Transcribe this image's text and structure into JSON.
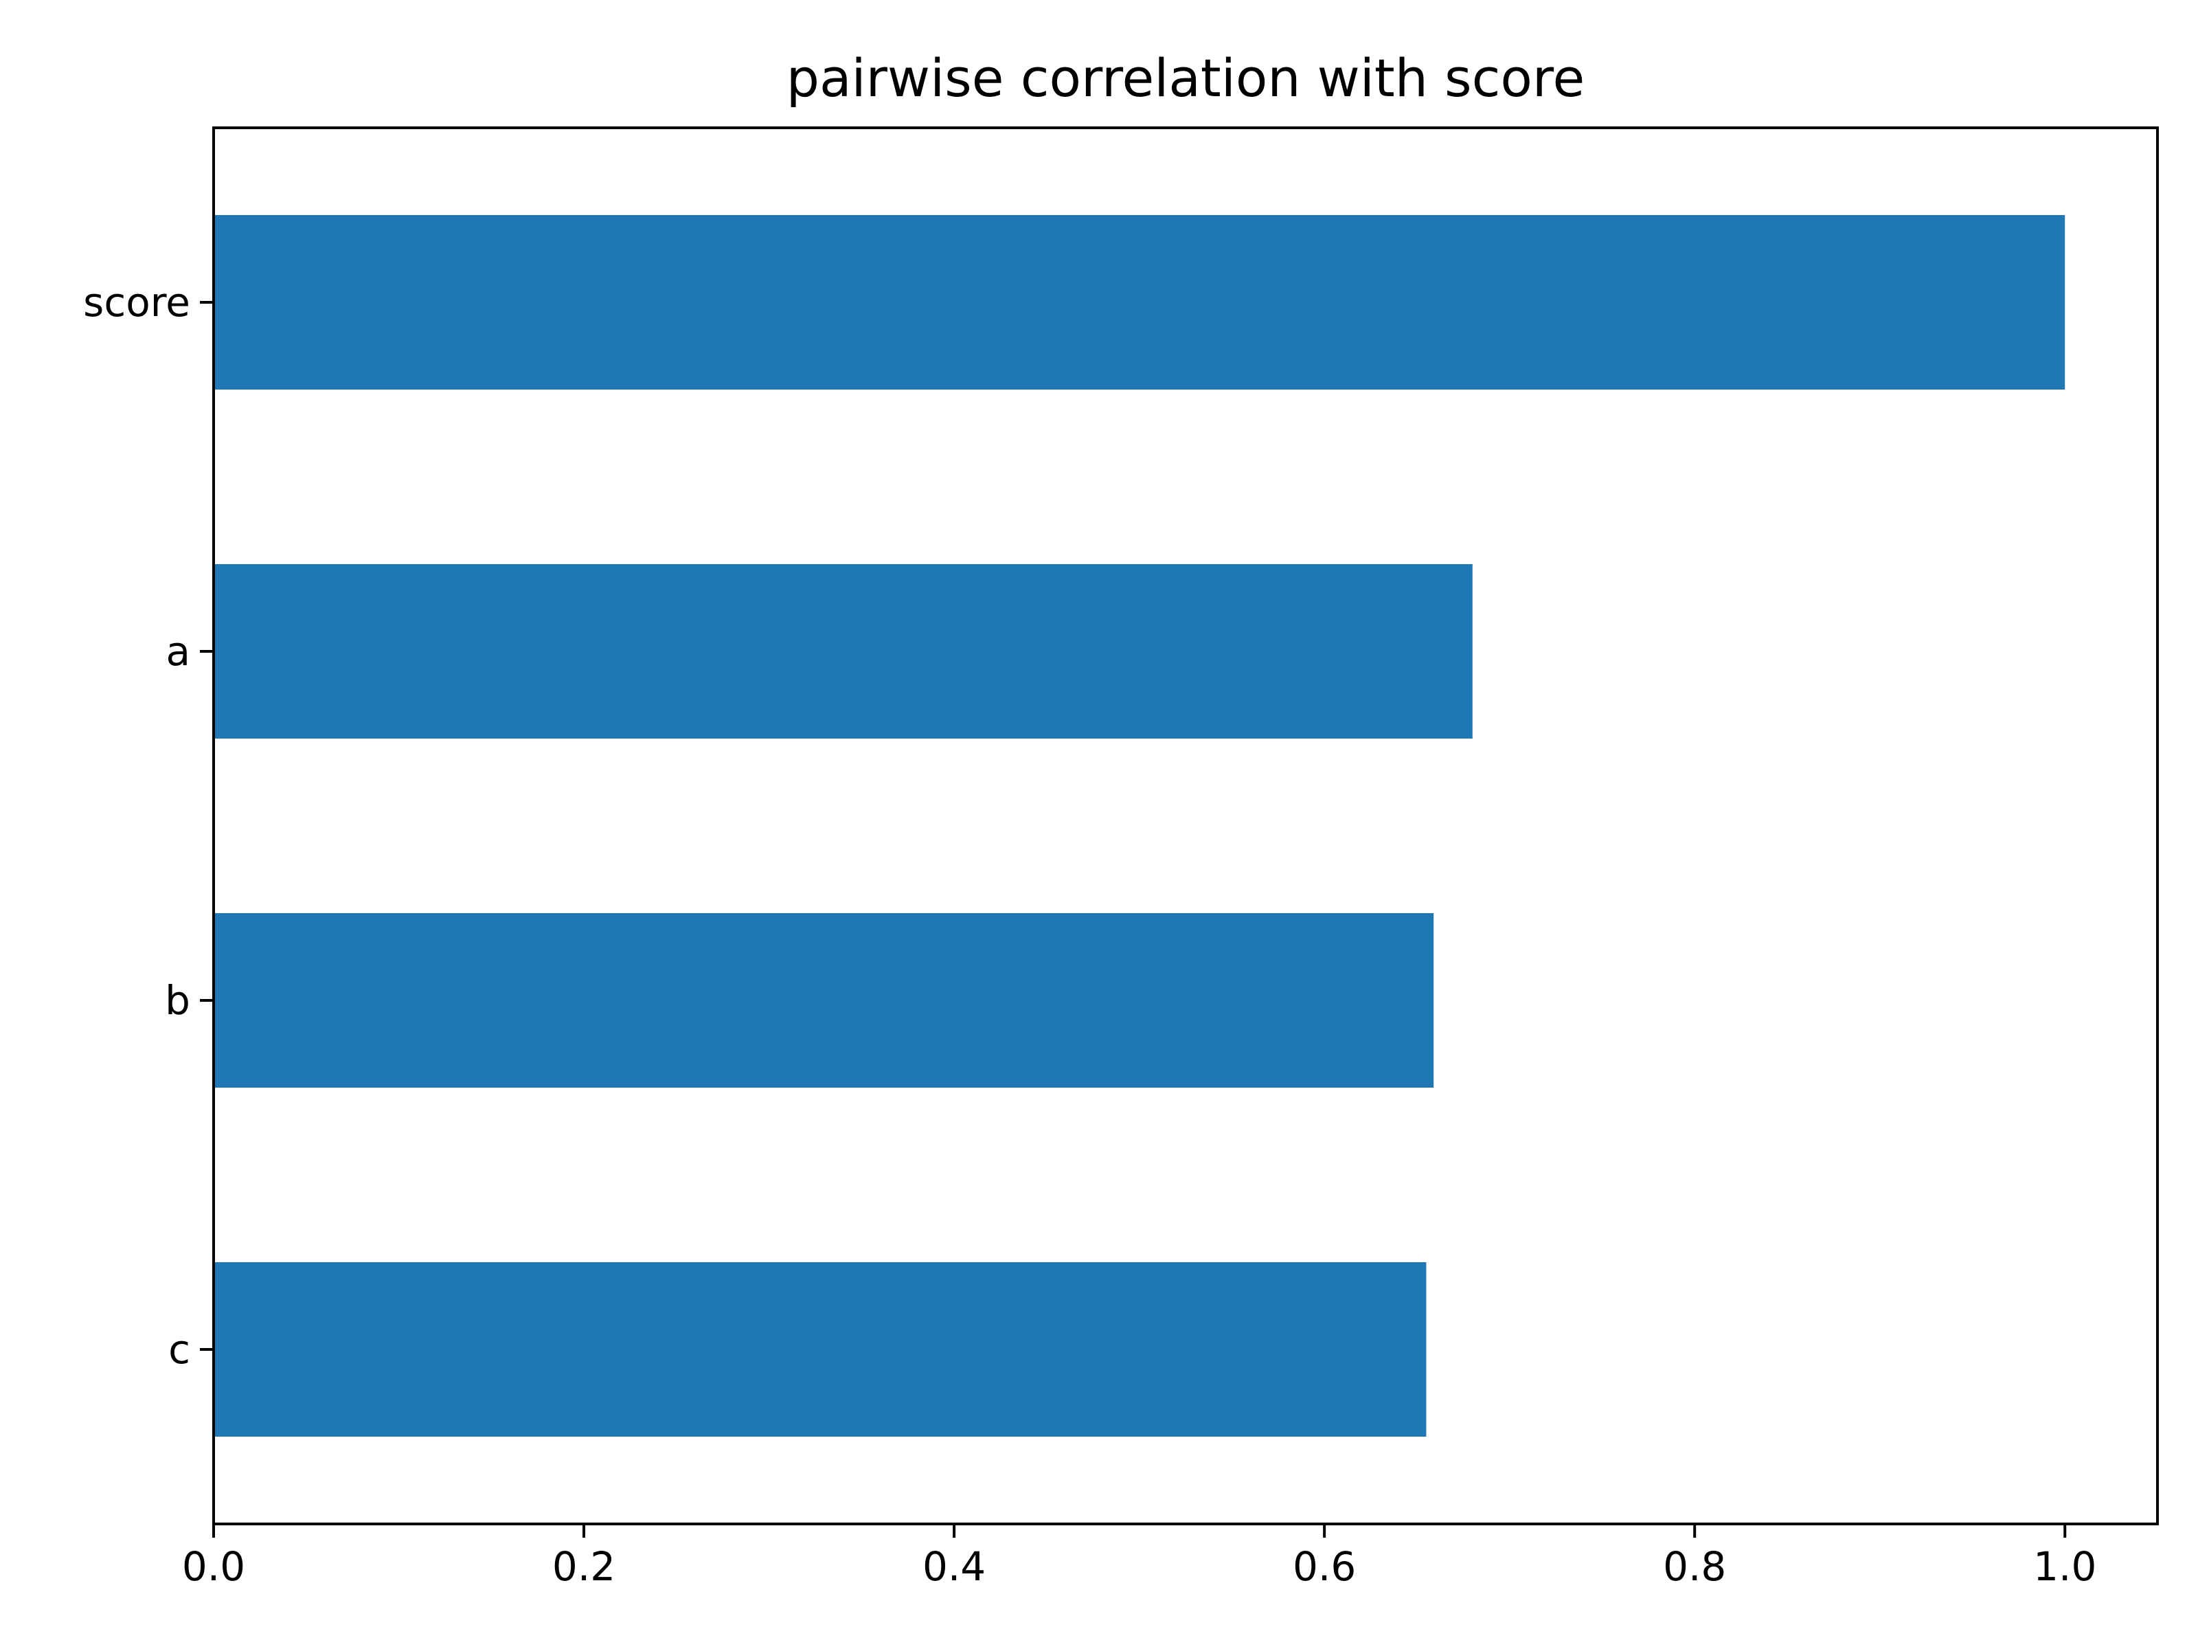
{
  "chart_data": {
    "type": "bar",
    "orientation": "horizontal",
    "title": "pairwise correlation with score",
    "xlabel": "",
    "ylabel": "",
    "categories": [
      "score",
      "a",
      "b",
      "c"
    ],
    "values": [
      1.0,
      0.68,
      0.659,
      0.655
    ],
    "xlim": [
      0.0,
      1.05
    ],
    "xticks": [
      "0.0",
      "0.2",
      "0.4",
      "0.6",
      "0.8",
      "1.0"
    ],
    "grid": false,
    "legend": "none",
    "bar_color": "#1f77b4"
  }
}
